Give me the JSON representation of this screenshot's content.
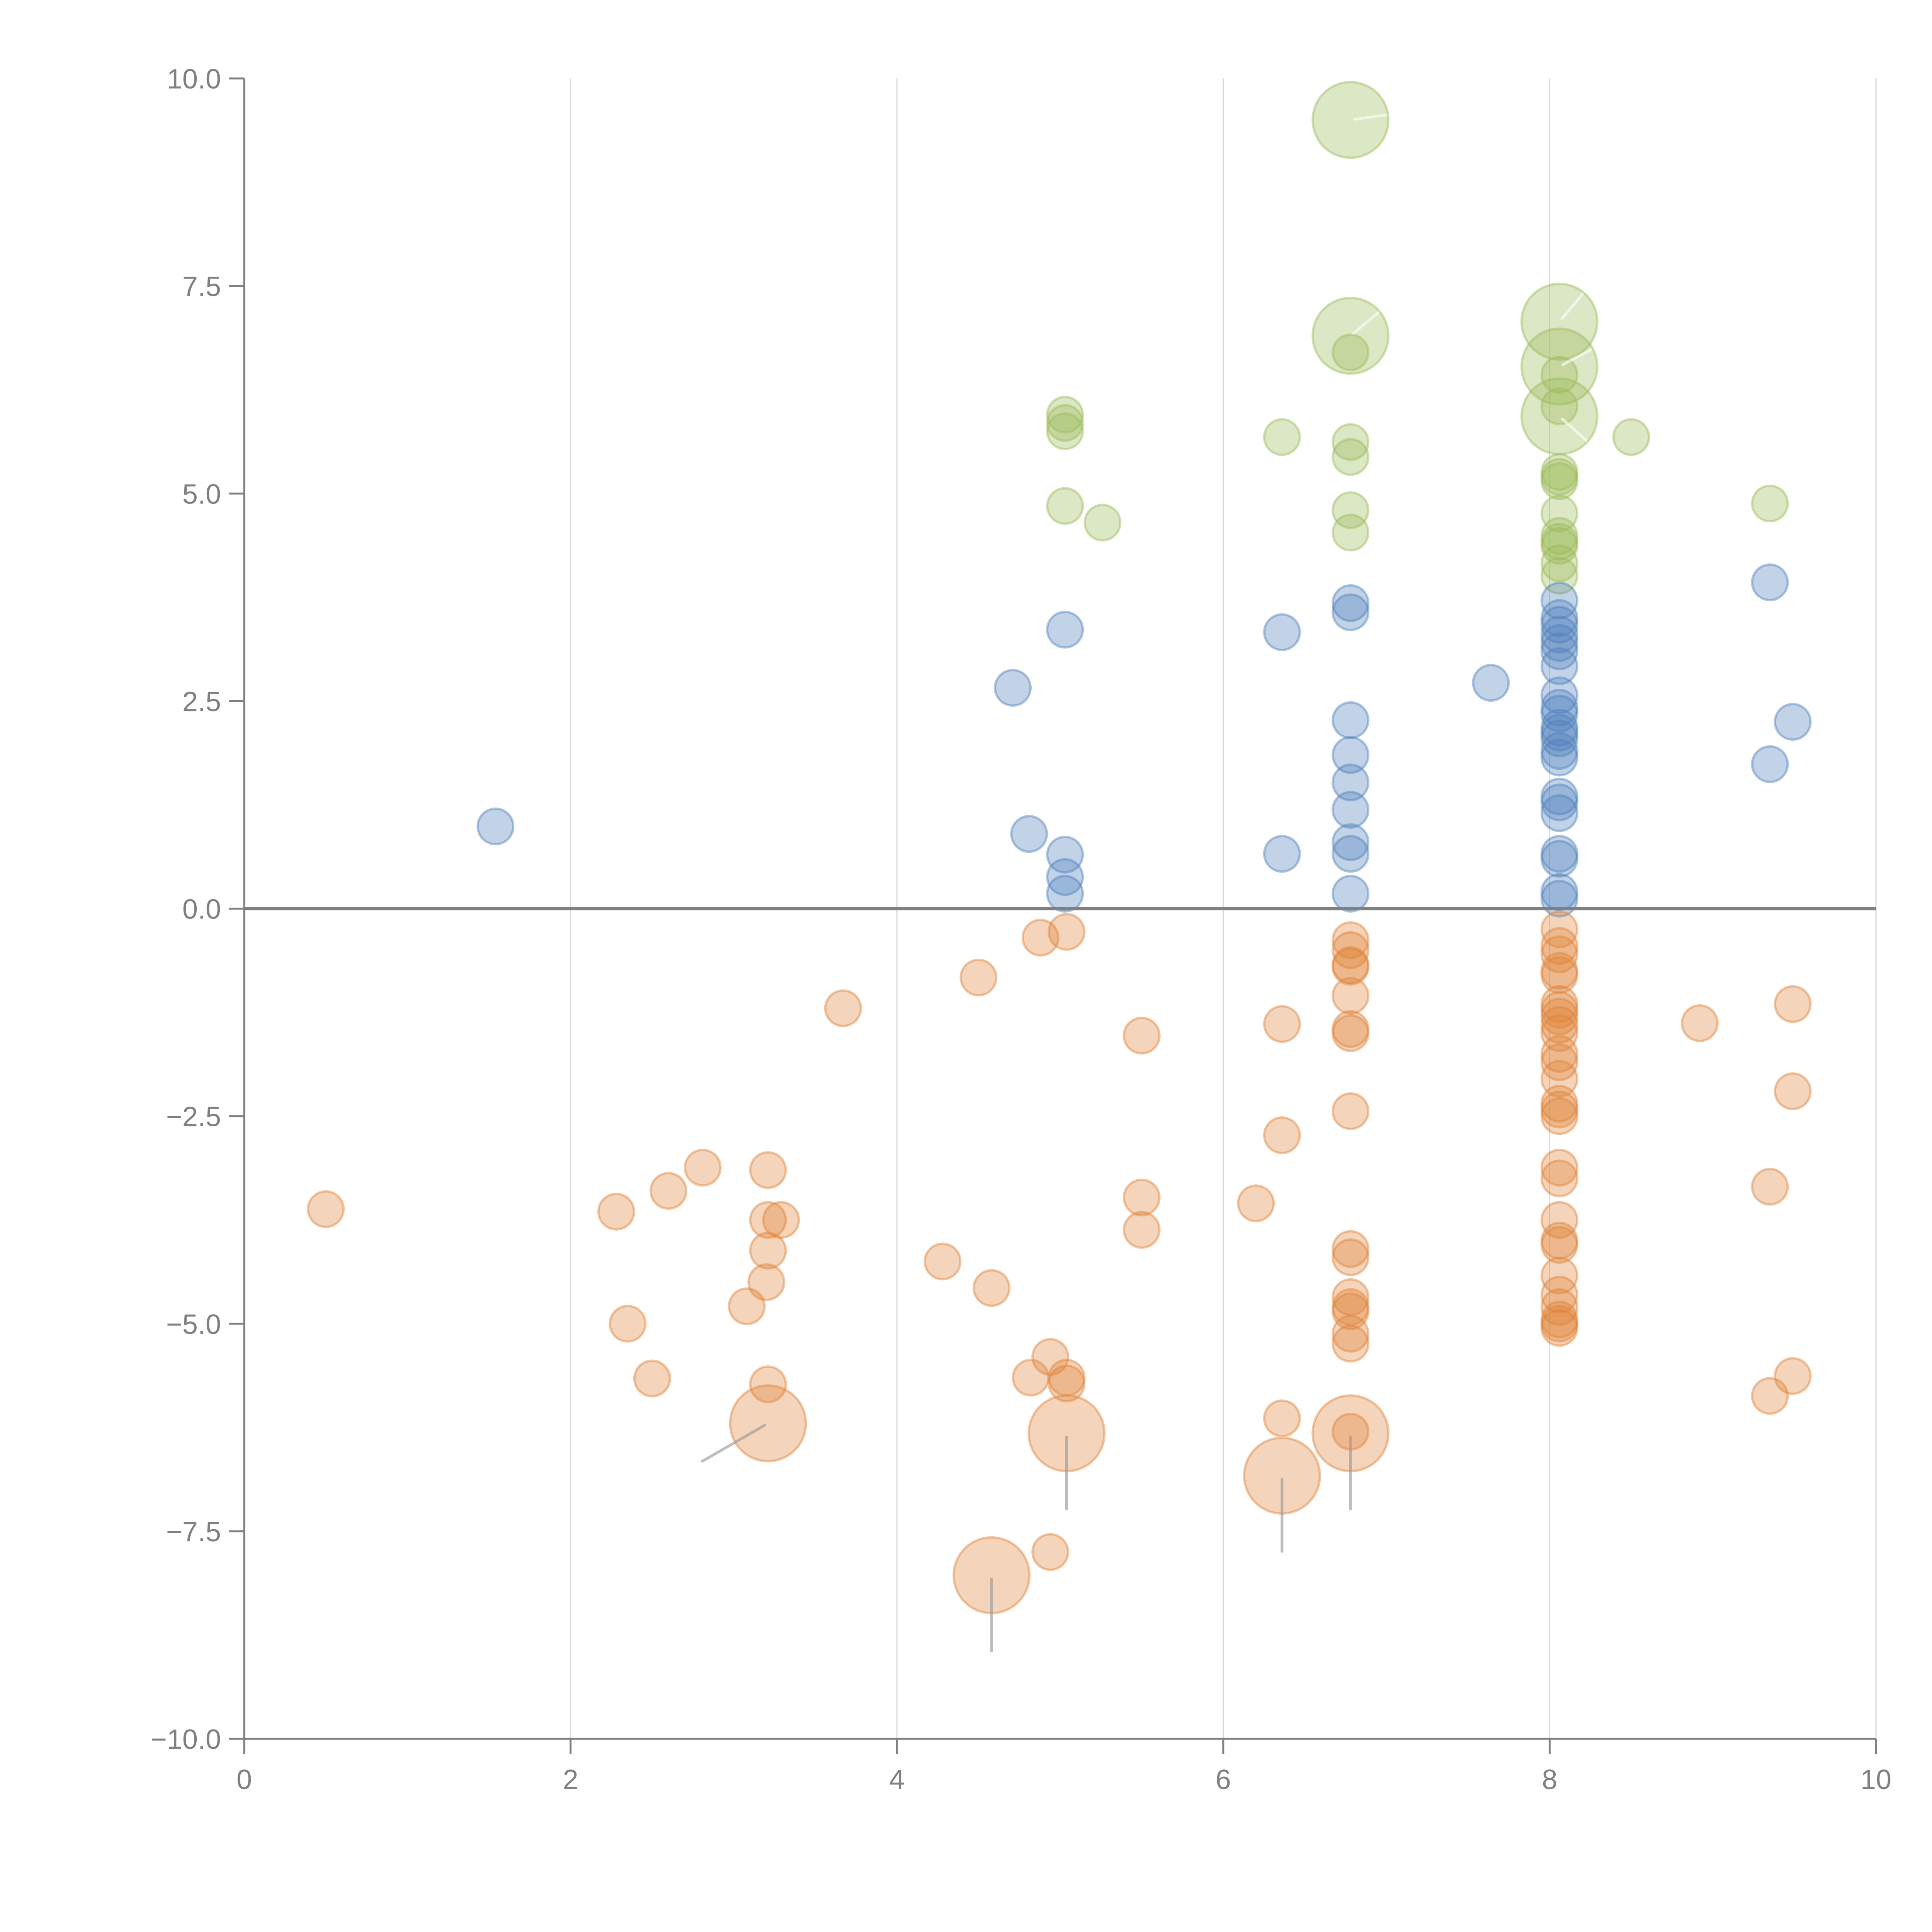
{
  "chart_data": {
    "type": "scatter",
    "subtype": "bubble",
    "title": "",
    "xlabel": "",
    "ylabel": "",
    "xlim": [
      0,
      10
    ],
    "ylim": [
      -10,
      10
    ],
    "x_ticks": [
      "0",
      "2",
      "4",
      "6",
      "8",
      "10"
    ],
    "x_tick_values": [
      0,
      2,
      4,
      6,
      8,
      10
    ],
    "y_ticks": [
      "10.0",
      "7.5",
      "5.0",
      "2.5",
      "0.0",
      "−2.5",
      "−5.0",
      "−7.5",
      "−10.0"
    ],
    "y_tick_values": [
      10,
      7.5,
      5,
      2.5,
      0,
      -2.5,
      -5,
      -7.5,
      -10
    ],
    "grid": "vertical",
    "reference_line_y": 0,
    "legend": "none",
    "series": [
      {
        "name": "green",
        "color": "#9bbb59",
        "points": [
          {
            "x": 6.78,
            "y": 9.5,
            "size": "large",
            "needle_angle": -8
          },
          {
            "x": 6.78,
            "y": 6.9,
            "size": "large",
            "needle_angle": -40
          },
          {
            "x": 6.78,
            "y": 6.7,
            "size": "small"
          },
          {
            "x": 5.03,
            "y": 5.95,
            "size": "small"
          },
          {
            "x": 5.03,
            "y": 5.85,
            "size": "small"
          },
          {
            "x": 5.03,
            "y": 5.75,
            "size": "small"
          },
          {
            "x": 5.03,
            "y": 4.85,
            "size": "small"
          },
          {
            "x": 5.26,
            "y": 4.65,
            "size": "small"
          },
          {
            "x": 6.36,
            "y": 5.68,
            "size": "small"
          },
          {
            "x": 6.78,
            "y": 5.62,
            "size": "small"
          },
          {
            "x": 6.78,
            "y": 5.44,
            "size": "small"
          },
          {
            "x": 6.78,
            "y": 4.8,
            "size": "small"
          },
          {
            "x": 6.78,
            "y": 4.53,
            "size": "small"
          },
          {
            "x": 8.06,
            "y": 7.07,
            "size": "large",
            "needle_angle": -50
          },
          {
            "x": 8.06,
            "y": 6.53,
            "size": "large",
            "needle_angle": -28
          },
          {
            "x": 8.06,
            "y": 6.43,
            "size": "small"
          },
          {
            "x": 8.06,
            "y": 6.05,
            "size": "small"
          },
          {
            "x": 8.06,
            "y": 5.93,
            "size": "large",
            "needle_angle": 42
          },
          {
            "x": 8.5,
            "y": 5.68,
            "size": "small"
          },
          {
            "x": 8.06,
            "y": 5.26,
            "size": "small"
          },
          {
            "x": 8.06,
            "y": 5.2,
            "size": "small"
          },
          {
            "x": 8.06,
            "y": 5.15,
            "size": "small"
          },
          {
            "x": 8.06,
            "y": 4.76,
            "size": "small"
          },
          {
            "x": 8.06,
            "y": 4.49,
            "size": "small"
          },
          {
            "x": 8.06,
            "y": 4.42,
            "size": "small"
          },
          {
            "x": 8.06,
            "y": 4.37,
            "size": "small"
          },
          {
            "x": 8.06,
            "y": 4.16,
            "size": "small"
          },
          {
            "x": 8.06,
            "y": 4.01,
            "size": "small"
          },
          {
            "x": 9.35,
            "y": 4.88,
            "size": "small"
          }
        ]
      },
      {
        "name": "blue",
        "color": "#4f81bd",
        "points": [
          {
            "x": 1.54,
            "y": 0.99,
            "size": "small"
          },
          {
            "x": 4.71,
            "y": 2.66,
            "size": "small"
          },
          {
            "x": 5.03,
            "y": 3.36,
            "size": "small"
          },
          {
            "x": 4.81,
            "y": 0.9,
            "size": "small"
          },
          {
            "x": 5.03,
            "y": 0.65,
            "size": "small"
          },
          {
            "x": 5.03,
            "y": 0.38,
            "size": "small"
          },
          {
            "x": 5.03,
            "y": 0.18,
            "size": "small"
          },
          {
            "x": 6.36,
            "y": 3.33,
            "size": "small"
          },
          {
            "x": 6.36,
            "y": 0.66,
            "size": "small"
          },
          {
            "x": 6.78,
            "y": 3.68,
            "size": "small"
          },
          {
            "x": 6.78,
            "y": 3.57,
            "size": "small"
          },
          {
            "x": 6.78,
            "y": 2.27,
            "size": "small"
          },
          {
            "x": 6.78,
            "y": 1.85,
            "size": "small"
          },
          {
            "x": 6.78,
            "y": 1.52,
            "size": "small"
          },
          {
            "x": 6.78,
            "y": 1.19,
            "size": "small"
          },
          {
            "x": 6.78,
            "y": 0.8,
            "size": "small"
          },
          {
            "x": 6.78,
            "y": 0.66,
            "size": "small"
          },
          {
            "x": 6.78,
            "y": 0.18,
            "size": "small"
          },
          {
            "x": 7.64,
            "y": 2.72,
            "size": "small"
          },
          {
            "x": 8.06,
            "y": 3.71,
            "size": "small"
          },
          {
            "x": 8.06,
            "y": 3.5,
            "size": "small"
          },
          {
            "x": 8.06,
            "y": 3.42,
            "size": "small"
          },
          {
            "x": 8.06,
            "y": 3.3,
            "size": "small"
          },
          {
            "x": 8.06,
            "y": 3.2,
            "size": "small"
          },
          {
            "x": 8.06,
            "y": 3.1,
            "size": "small"
          },
          {
            "x": 8.06,
            "y": 2.92,
            "size": "small"
          },
          {
            "x": 8.06,
            "y": 2.57,
            "size": "small"
          },
          {
            "x": 8.06,
            "y": 2.42,
            "size": "small"
          },
          {
            "x": 8.06,
            "y": 2.35,
            "size": "small"
          },
          {
            "x": 8.06,
            "y": 2.18,
            "size": "small"
          },
          {
            "x": 8.06,
            "y": 2.12,
            "size": "small"
          },
          {
            "x": 8.06,
            "y": 2.05,
            "size": "small"
          },
          {
            "x": 8.06,
            "y": 1.9,
            "size": "small"
          },
          {
            "x": 8.06,
            "y": 1.82,
            "size": "small"
          },
          {
            "x": 8.06,
            "y": 1.35,
            "size": "small"
          },
          {
            "x": 8.06,
            "y": 1.28,
            "size": "small"
          },
          {
            "x": 8.06,
            "y": 1.15,
            "size": "small"
          },
          {
            "x": 8.06,
            "y": 0.66,
            "size": "small"
          },
          {
            "x": 8.06,
            "y": 0.6,
            "size": "small"
          },
          {
            "x": 8.06,
            "y": 0.2,
            "size": "small"
          },
          {
            "x": 8.06,
            "y": 0.12,
            "size": "small"
          },
          {
            "x": 9.35,
            "y": 3.93,
            "size": "small"
          },
          {
            "x": 9.49,
            "y": 2.25,
            "size": "small"
          },
          {
            "x": 9.35,
            "y": 1.74,
            "size": "small"
          }
        ]
      },
      {
        "name": "orange",
        "color": "#e0833a",
        "points": [
          {
            "x": 0.5,
            "y": -3.62,
            "size": "small"
          },
          {
            "x": 2.28,
            "y": -3.65,
            "size": "small"
          },
          {
            "x": 2.6,
            "y": -3.4,
            "size": "small"
          },
          {
            "x": 2.81,
            "y": -3.12,
            "size": "small"
          },
          {
            "x": 3.21,
            "y": -3.15,
            "size": "small"
          },
          {
            "x": 3.21,
            "y": -3.75,
            "size": "small"
          },
          {
            "x": 3.29,
            "y": -3.75,
            "size": "small"
          },
          {
            "x": 3.21,
            "y": -4.12,
            "size": "small"
          },
          {
            "x": 3.2,
            "y": -4.5,
            "size": "small"
          },
          {
            "x": 3.08,
            "y": -4.79,
            "size": "small"
          },
          {
            "x": 2.35,
            "y": -5.0,
            "size": "small"
          },
          {
            "x": 2.5,
            "y": -5.66,
            "size": "small"
          },
          {
            "x": 3.21,
            "y": -5.73,
            "size": "small"
          },
          {
            "x": 3.21,
            "y": -6.2,
            "size": "large",
            "needle_angle": 150
          },
          {
            "x": 3.67,
            "y": -1.2,
            "size": "small"
          },
          {
            "x": 4.5,
            "y": -0.83,
            "size": "small"
          },
          {
            "x": 4.88,
            "y": -0.35,
            "size": "small"
          },
          {
            "x": 5.04,
            "y": -0.28,
            "size": "small"
          },
          {
            "x": 5.5,
            "y": -1.53,
            "size": "small"
          },
          {
            "x": 5.5,
            "y": -3.48,
            "size": "small"
          },
          {
            "x": 5.5,
            "y": -3.87,
            "size": "small"
          },
          {
            "x": 4.28,
            "y": -4.25,
            "size": "small"
          },
          {
            "x": 4.58,
            "y": -4.57,
            "size": "small"
          },
          {
            "x": 4.94,
            "y": -5.4,
            "size": "small"
          },
          {
            "x": 4.82,
            "y": -5.65,
            "size": "small"
          },
          {
            "x": 5.04,
            "y": -5.65,
            "size": "small"
          },
          {
            "x": 5.04,
            "y": -5.72,
            "size": "small"
          },
          {
            "x": 5.04,
            "y": -6.32,
            "size": "large",
            "needle_angle": 90
          },
          {
            "x": 4.58,
            "y": -8.03,
            "size": "large",
            "needle_angle": 90
          },
          {
            "x": 4.94,
            "y": -7.75,
            "size": "small"
          },
          {
            "x": 6.36,
            "y": -1.39,
            "size": "small"
          },
          {
            "x": 6.36,
            "y": -2.73,
            "size": "small"
          },
          {
            "x": 6.2,
            "y": -3.55,
            "size": "small"
          },
          {
            "x": 6.36,
            "y": -6.14,
            "size": "small"
          },
          {
            "x": 6.36,
            "y": -6.83,
            "size": "large",
            "needle_angle": 90
          },
          {
            "x": 6.78,
            "y": -0.38,
            "size": "small"
          },
          {
            "x": 6.78,
            "y": -0.5,
            "size": "small"
          },
          {
            "x": 6.78,
            "y": -0.68,
            "size": "small"
          },
          {
            "x": 6.78,
            "y": -0.7,
            "size": "small"
          },
          {
            "x": 6.78,
            "y": -1.05,
            "size": "small"
          },
          {
            "x": 6.78,
            "y": -1.45,
            "size": "small"
          },
          {
            "x": 6.78,
            "y": -1.5,
            "size": "small"
          },
          {
            "x": 6.78,
            "y": -2.44,
            "size": "small"
          },
          {
            "x": 6.78,
            "y": -4.1,
            "size": "small"
          },
          {
            "x": 6.78,
            "y": -4.2,
            "size": "small"
          },
          {
            "x": 6.78,
            "y": -4.68,
            "size": "small"
          },
          {
            "x": 6.78,
            "y": -4.8,
            "size": "small"
          },
          {
            "x": 6.78,
            "y": -4.85,
            "size": "small"
          },
          {
            "x": 6.78,
            "y": -5.12,
            "size": "small"
          },
          {
            "x": 6.78,
            "y": -5.24,
            "size": "small"
          },
          {
            "x": 6.78,
            "y": -6.3,
            "size": "small"
          },
          {
            "x": 6.78,
            "y": -6.32,
            "size": "large",
            "needle_angle": 90
          },
          {
            "x": 8.06,
            "y": -0.25,
            "size": "small"
          },
          {
            "x": 8.06,
            "y": -0.45,
            "size": "small"
          },
          {
            "x": 8.06,
            "y": -0.55,
            "size": "small"
          },
          {
            "x": 8.06,
            "y": -0.75,
            "size": "small"
          },
          {
            "x": 8.06,
            "y": -0.8,
            "size": "small"
          },
          {
            "x": 8.06,
            "y": -1.15,
            "size": "small"
          },
          {
            "x": 8.06,
            "y": -1.22,
            "size": "small"
          },
          {
            "x": 8.06,
            "y": -1.3,
            "size": "small"
          },
          {
            "x": 8.06,
            "y": -1.4,
            "size": "small"
          },
          {
            "x": 8.06,
            "y": -1.5,
            "size": "small"
          },
          {
            "x": 8.06,
            "y": -1.75,
            "size": "small"
          },
          {
            "x": 8.06,
            "y": -1.85,
            "size": "small"
          },
          {
            "x": 8.06,
            "y": -2.05,
            "size": "small"
          },
          {
            "x": 8.06,
            "y": -2.35,
            "size": "small"
          },
          {
            "x": 8.06,
            "y": -2.42,
            "size": "small"
          },
          {
            "x": 8.06,
            "y": -2.5,
            "size": "small"
          },
          {
            "x": 8.06,
            "y": -3.12,
            "size": "small"
          },
          {
            "x": 8.06,
            "y": -3.25,
            "size": "small"
          },
          {
            "x": 8.06,
            "y": -3.75,
            "size": "small"
          },
          {
            "x": 8.06,
            "y": -4.0,
            "size": "small"
          },
          {
            "x": 8.06,
            "y": -4.05,
            "size": "small"
          },
          {
            "x": 8.06,
            "y": -4.42,
            "size": "small"
          },
          {
            "x": 8.06,
            "y": -4.65,
            "size": "small"
          },
          {
            "x": 8.06,
            "y": -4.8,
            "size": "small"
          },
          {
            "x": 8.06,
            "y": -4.95,
            "size": "small"
          },
          {
            "x": 8.06,
            "y": -5.0,
            "size": "small"
          },
          {
            "x": 8.06,
            "y": -5.05,
            "size": "small"
          },
          {
            "x": 8.92,
            "y": -1.38,
            "size": "small"
          },
          {
            "x": 9.49,
            "y": -1.15,
            "size": "small"
          },
          {
            "x": 9.49,
            "y": -2.2,
            "size": "small"
          },
          {
            "x": 9.35,
            "y": -3.35,
            "size": "small"
          },
          {
            "x": 9.35,
            "y": -5.87,
            "size": "small"
          },
          {
            "x": 9.49,
            "y": -5.63,
            "size": "small"
          }
        ]
      }
    ]
  }
}
